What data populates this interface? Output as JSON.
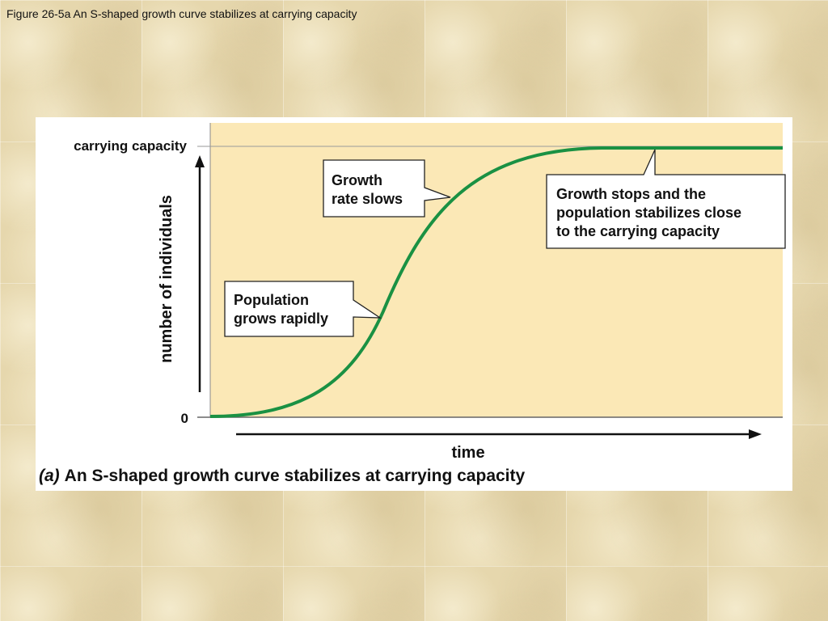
{
  "slide": {
    "title": "Figure 26-5a An S-shaped growth curve stabilizes at carrying capacity"
  },
  "figure": {
    "caption_tag": "(a)",
    "caption_text": "An S-shaped growth curve stabilizes at carrying capacity"
  },
  "chart_data": {
    "type": "line",
    "title": "",
    "xlabel": "time",
    "ylabel": "number of individuals",
    "y_tick_labels": {
      "bottom": "0",
      "top": "carrying capacity"
    },
    "series": [
      {
        "values_description": "logistic",
        "x": [
          0,
          0.1,
          0.2,
          0.3,
          0.4,
          0.5,
          0.6,
          0.7,
          0.8,
          1.0
        ],
        "y": [
          0,
          0.03,
          0.15,
          0.45,
          0.78,
          0.93,
          0.98,
          0.995,
          1.0,
          1.0
        ]
      }
    ],
    "colors": {
      "curve": "#1a9143",
      "plot_background": "#fbe8b6",
      "carrying_capacity_line": "#9a9a9a"
    }
  },
  "callouts": {
    "rate_slows": {
      "line1": "Growth",
      "line2": "rate slows"
    },
    "stabilizes": {
      "line1": "Growth stops and the",
      "line2": "population stabilizes close",
      "line3": "to the carrying capacity"
    },
    "grows_rapidly": {
      "line1": "Population",
      "line2": "grows rapidly"
    }
  }
}
